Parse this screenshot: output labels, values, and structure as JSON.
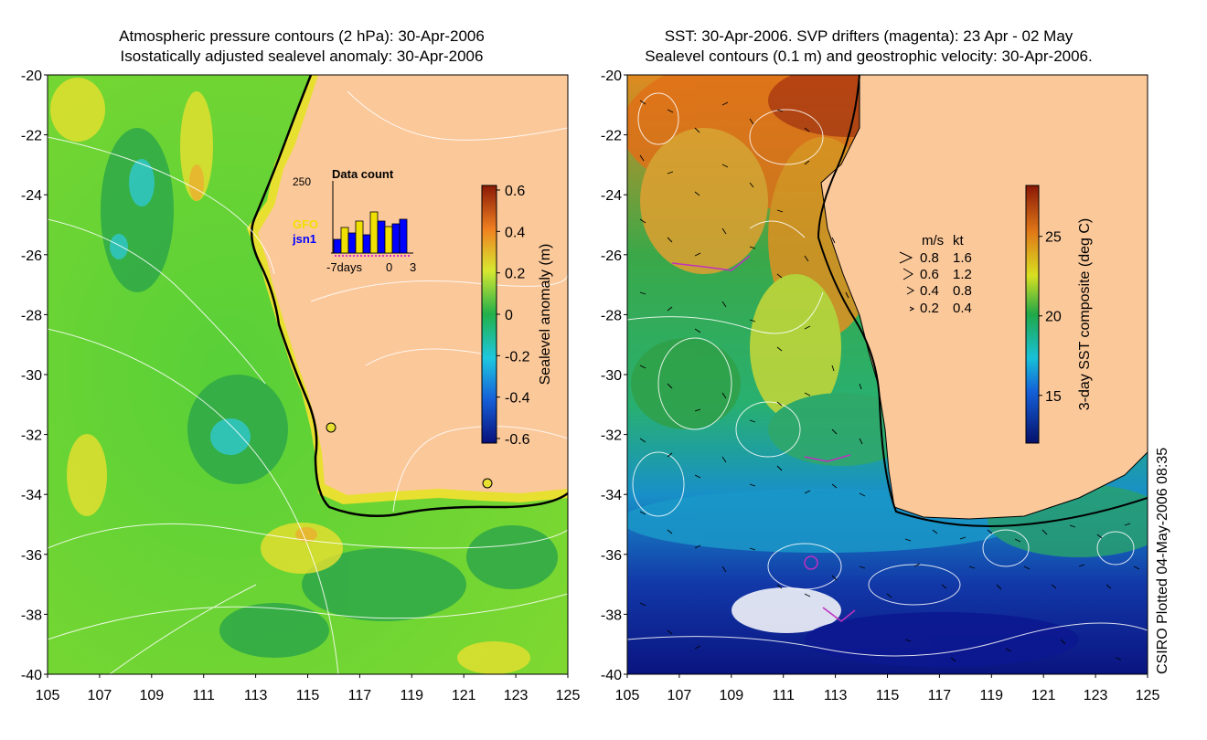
{
  "left_panel": {
    "title_line1": "Atmospheric pressure contours (2 hPa): 30-Apr-2006",
    "title_line2": "Isostatically adjusted sealevel anomaly: 30-Apr-2006",
    "colorbar": {
      "label": "Sealevel anomaly (m)",
      "ticks": [
        "0.6",
        "0.4",
        "0.2",
        "0",
        "-0.2",
        "-0.4",
        "-0.6"
      ]
    },
    "inset": {
      "title": "Data count",
      "ymax_label": "250",
      "legend": [
        {
          "name": "GFO",
          "color": "#f0e000"
        },
        {
          "name": "jsn1",
          "color": "#0000ff"
        }
      ],
      "x_labels": [
        "-7days",
        "0",
        "3"
      ]
    }
  },
  "right_panel": {
    "title_line1": "SST: 30-Apr-2006. SVP drifters (magenta): 23 Apr - 02 May",
    "title_line2": "Sealevel contours (0.1 m) and geostrophic velocity: 30-Apr-2006.",
    "colorbar": {
      "label": "3-day SST composite (deg C)",
      "ticks": [
        "25",
        "20",
        "15"
      ]
    },
    "velocity_legend": {
      "header": [
        "m/s",
        "kt"
      ],
      "rows": [
        {
          "ms": "0.8",
          "kt": "1.6"
        },
        {
          "ms": "0.6",
          "kt": "1.2"
        },
        {
          "ms": "0.4",
          "kt": "0.8"
        },
        {
          "ms": "0.2",
          "kt": "0.4"
        }
      ]
    }
  },
  "axes": {
    "y_ticks": [
      "-20",
      "-22",
      "-24",
      "-26",
      "-28",
      "-30",
      "-32",
      "-34",
      "-36",
      "-38",
      "-40"
    ],
    "x_ticks": [
      "105",
      "107",
      "109",
      "111",
      "113",
      "115",
      "117",
      "119",
      "121",
      "123",
      "125"
    ]
  },
  "credit": "CSIRO Plotted 04-May-2006 08:35"
}
